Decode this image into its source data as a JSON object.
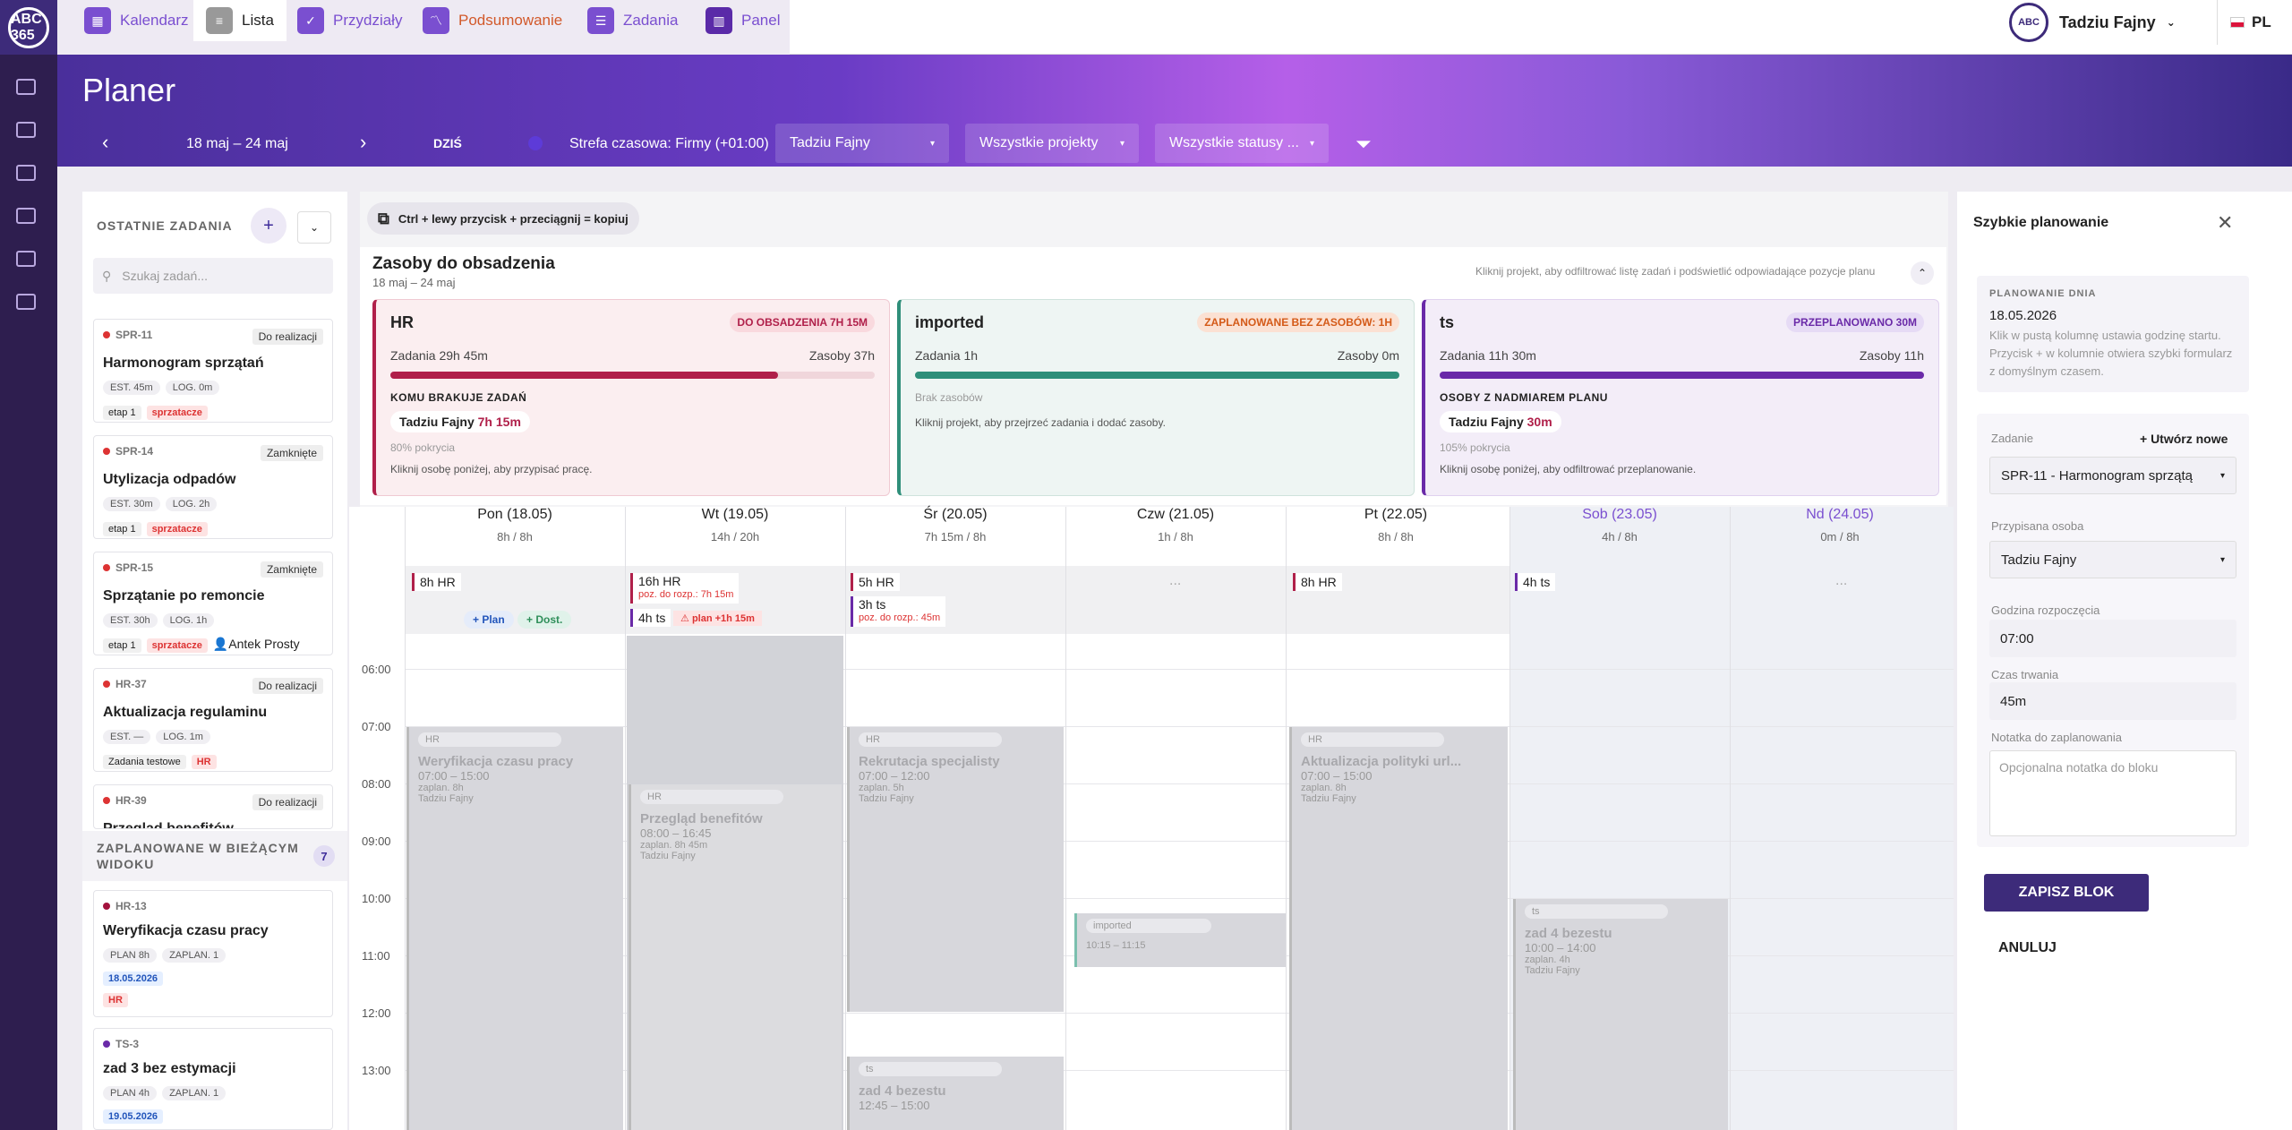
{
  "nav": {
    "logo": "ABC 365",
    "tabs": [
      {
        "label": "Kalendarz",
        "icon": "calendar-icon"
      },
      {
        "label": "Lista",
        "icon": "list-icon"
      },
      {
        "label": "Przydziały",
        "icon": "assignment-icon"
      },
      {
        "label": "Podsumowanie",
        "icon": "chart-icon"
      },
      {
        "label": "Zadania",
        "icon": "tasks-icon"
      },
      {
        "label": "Panel",
        "icon": "panel-icon"
      }
    ],
    "user_name": "Tadziu Fajny",
    "language": "PL"
  },
  "header": {
    "title": "Planer",
    "date_range": "18 maj – 24 maj",
    "today": "DZIŚ",
    "timezone": "Strefa czasowa: Firmy (+01:00)",
    "person_filter": "Tadziu Fajny",
    "project_filter": "Wszystkie projekty",
    "status_filter": "Wszystkie statusy ..."
  },
  "left": {
    "recent_title": "OSTATNIE ZADANIA",
    "search_placeholder": "Szukaj zadań...",
    "tasks": [
      {
        "id": "SPR-11",
        "status": "Do realizacji",
        "title": "Harmonogram sprzątań",
        "est": "45m",
        "log": "0m",
        "tags": [
          "etap 1",
          "sprzatacze"
        ]
      },
      {
        "id": "SPR-14",
        "status": "Zamknięte",
        "title": "Utylizacja odpadów",
        "est": "30m",
        "log": "2h",
        "tags": [
          "etap 1",
          "sprzatacze"
        ]
      },
      {
        "id": "SPR-15",
        "status": "Zamknięte",
        "title": "Sprzątanie po remoncie",
        "est": "30h",
        "log": "1h",
        "tags": [
          "etap 1",
          "sprzatacze"
        ],
        "person": "Antek Prosty"
      },
      {
        "id": "HR-37",
        "status": "Do realizacji",
        "title": "Aktualizacja regulaminu",
        "est": "—",
        "log": "1m",
        "tags": [
          "Zadania testowe",
          "HR"
        ]
      },
      {
        "id": "HR-39",
        "status": "Do realizacji",
        "title": "Przegląd benefitów"
      }
    ],
    "est_label": "EST.",
    "log_label": "LOG.",
    "planned_title": "ZAPLANOWANE W BIEŻĄCYM WIDOKU",
    "planned_count": "7",
    "planned": [
      {
        "id": "HR-13",
        "title": "Weryfikacja czasu pracy",
        "plan": "8h",
        "zaplan": "1",
        "date": "18.05.2026",
        "tag": "HR"
      },
      {
        "id": "TS-3",
        "title": "zad 3 bez estymacji",
        "plan": "4h",
        "zaplan": "1",
        "date": "19.05.2026"
      }
    ],
    "plan_label": "PLAN",
    "zaplan_label": "ZAPLAN."
  },
  "center": {
    "hint": "Ctrl + lewy przycisk + przeciągnij = kopiuj",
    "resources_title": "Zasoby do obsadzenia",
    "resources_range": "18 maj – 24 maj",
    "resources_hint": "Kliknij projekt, aby odfiltrować listę zadań i podświetlić odpowiadające pozycje planu",
    "resources": [
      {
        "name": "HR",
        "badge": "DO OBSADZENIA 7H 15M",
        "tasks": "Zadania 29h 45m",
        "res": "Zasoby 37h",
        "fill": 0.8,
        "sub": "KOMU BRAKUJE ZADAŃ",
        "person": "Tadziu Fajny",
        "person_val": "7h 15m",
        "coverage": "80% pokrycia",
        "note": "Kliknij osobę poniżej, aby przypisać pracę.",
        "color": "#b0204a"
      },
      {
        "name": "imported",
        "badge": "ZAPLANOWANE BEZ ZASOBÓW: 1H",
        "tasks": "Zadania 1h",
        "res": "Zasoby 0m",
        "fill": 1.0,
        "sub": "Brak zasobów",
        "note": "Kliknij projekt, aby przejrzeć zadania i dodać zasoby.",
        "color": "#2f8f7a"
      },
      {
        "name": "ts",
        "badge": "PRZEPLANOWANO 30M",
        "tasks": "Zadania 11h 30m",
        "res": "Zasoby 11h",
        "fill": 1.0,
        "sub": "OSOBY Z NADMIAREM PLANU",
        "person": "Tadziu Fajny",
        "person_val": "30m",
        "coverage": "105% pokrycia",
        "note": "Kliknij osobę poniżej, aby odfiltrować przeplanowanie.",
        "color": "#6a2aa8"
      }
    ],
    "days": [
      {
        "name": "Pon (18.05)",
        "sum": "8h / 8h"
      },
      {
        "name": "Wt (19.05)",
        "sum": "14h / 20h"
      },
      {
        "name": "Śr (20.05)",
        "sum": "7h 15m / 8h"
      },
      {
        "name": "Czw (21.05)",
        "sum": "1h / 8h"
      },
      {
        "name": "Pt (22.05)",
        "sum": "8h / 8h"
      },
      {
        "name": "Sob (23.05)",
        "sum": "4h / 8h"
      },
      {
        "name": "Nd (24.05)",
        "sum": "0m / 8h"
      }
    ],
    "hours": [
      "06:00",
      "07:00",
      "08:00",
      "09:00",
      "10:00",
      "11:00",
      "12:00",
      "13:00"
    ],
    "plan_btn": "+ Plan",
    "dost_btn": "+ Dost.",
    "summary_pills": {
      "mon": "8h HR",
      "tue1": "16h HR",
      "tue1_sub": "poz. do rozp.: 7h 15m",
      "tue2": "4h ts",
      "tue2_warn": "plan +1h 15m",
      "wed1": "5h HR",
      "wed2": "3h ts",
      "wed2_sub": "poz. do rozp.: 45m",
      "thu": "...",
      "fri": "8h HR",
      "sat": "4h ts",
      "sun": "..."
    },
    "blocks": [
      {
        "project": "HR",
        "title": "Weryfikacja czasu pracy",
        "time": "07:00 – 15:00",
        "plan": "zaplan. 8h",
        "person": "Tadziu Fajny"
      },
      {
        "project": "HR",
        "title": "Przegląd benefitów",
        "time": "08:00 – 16:45",
        "plan": "zaplan. 8h 45m",
        "person": "Tadziu Fajny"
      },
      {
        "project": "HR",
        "title": "Rekrutacja specjalisty",
        "time": "07:00 – 12:00",
        "plan": "zaplan. 5h",
        "person": "Tadziu Fajny"
      },
      {
        "project": "imported",
        "time": "10:15 – 11:15"
      },
      {
        "project": "HR",
        "title": "Aktualizacja polityki url...",
        "time": "07:00 – 15:00",
        "plan": "zaplan. 8h",
        "person": "Tadziu Fajny"
      },
      {
        "project": "ts",
        "title": "zad 4 bezestu",
        "time": "10:00 – 14:00",
        "plan": "zaplan. 4h",
        "person": "Tadziu Fajny"
      },
      {
        "project": "ts",
        "title": "zad 4 bezestu",
        "time": "12:45 – 15:00"
      }
    ]
  },
  "right": {
    "title": "Szybkie planowanie",
    "day_label": "PLANOWANIE DNIA",
    "day_date": "18.05.2026",
    "day_help": "Klik w pustą kolumnę ustawia godzinę startu. Przycisk + w kolumnie otwiera szybki formularz z domyślnym czasem.",
    "task_label": "Zadanie",
    "create_new": "+ Utwórz nowe",
    "task_value": "SPR-11 - Harmonogram sprzątą",
    "person_label": "Przypisana osoba",
    "person_value": "Tadziu Fajny",
    "start_label": "Godzina rozpoczęcia",
    "start_value": "07:00",
    "duration_label": "Czas trwania",
    "duration_value": "45m",
    "note_label": "Notatka do zaplanowania",
    "note_placeholder": "Opcjonalna notatka do bloku",
    "save": "ZAPISZ BLOK",
    "cancel": "ANULUJ"
  }
}
